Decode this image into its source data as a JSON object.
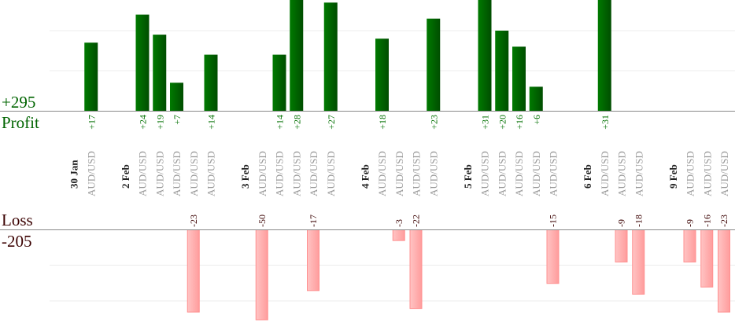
{
  "chart_data": {
    "type": "bar",
    "profit": {
      "label": "Profit",
      "total": "+295",
      "color": "#006400"
    },
    "loss": {
      "label": "Loss",
      "total": "-205",
      "color": "#ffb0b0",
      "text_color": "#3a0000"
    },
    "grid": true,
    "columns": [
      {
        "kind": "date",
        "label": "30 Jan"
      },
      {
        "kind": "trade",
        "label": "AUD/USD",
        "value": 17
      },
      {
        "kind": "gap"
      },
      {
        "kind": "date",
        "label": "2 Feb"
      },
      {
        "kind": "trade",
        "label": "AUD/USD",
        "value": 24
      },
      {
        "kind": "trade",
        "label": "AUD/USD",
        "value": 19
      },
      {
        "kind": "trade",
        "label": "AUD/USD",
        "value": 7
      },
      {
        "kind": "trade",
        "label": "AUD/USD",
        "value": -23
      },
      {
        "kind": "trade",
        "label": "AUD/USD",
        "value": 14
      },
      {
        "kind": "gap"
      },
      {
        "kind": "date",
        "label": "3 Feb"
      },
      {
        "kind": "trade",
        "label": "AUD/USD",
        "value": -50
      },
      {
        "kind": "trade",
        "label": "AUD/USD",
        "value": 14
      },
      {
        "kind": "trade",
        "label": "AUD/USD",
        "value": 28
      },
      {
        "kind": "trade",
        "label": "AUD/USD",
        "value": -17
      },
      {
        "kind": "trade",
        "label": "AUD/USD",
        "value": 27
      },
      {
        "kind": "gap"
      },
      {
        "kind": "date",
        "label": "4 Feb"
      },
      {
        "kind": "trade",
        "label": "AUD/USD",
        "value": 18
      },
      {
        "kind": "trade",
        "label": "AUD/USD",
        "value": -3
      },
      {
        "kind": "trade",
        "label": "AUD/USD",
        "value": -22
      },
      {
        "kind": "trade",
        "label": "AUD/USD",
        "value": 23
      },
      {
        "kind": "gap"
      },
      {
        "kind": "date",
        "label": "5 Feb"
      },
      {
        "kind": "trade",
        "label": "AUD/USD",
        "value": 31
      },
      {
        "kind": "trade",
        "label": "AUD/USD",
        "value": 20
      },
      {
        "kind": "trade",
        "label": "AUD/USD",
        "value": 16
      },
      {
        "kind": "trade",
        "label": "AUD/USD",
        "value": 6
      },
      {
        "kind": "trade",
        "label": "AUD/USD",
        "value": -15
      },
      {
        "kind": "gap"
      },
      {
        "kind": "date",
        "label": "6 Feb"
      },
      {
        "kind": "trade",
        "label": "AUD/USD",
        "value": 31
      },
      {
        "kind": "trade",
        "label": "AUD/USD",
        "value": -9
      },
      {
        "kind": "trade",
        "label": "AUD/USD",
        "value": -18
      },
      {
        "kind": "gap"
      },
      {
        "kind": "date",
        "label": "9 Feb"
      },
      {
        "kind": "trade",
        "label": "AUD/USD",
        "value": -9
      },
      {
        "kind": "trade",
        "label": "AUD/USD",
        "value": -16
      },
      {
        "kind": "trade",
        "label": "AUD/USD",
        "value": -23
      }
    ]
  }
}
